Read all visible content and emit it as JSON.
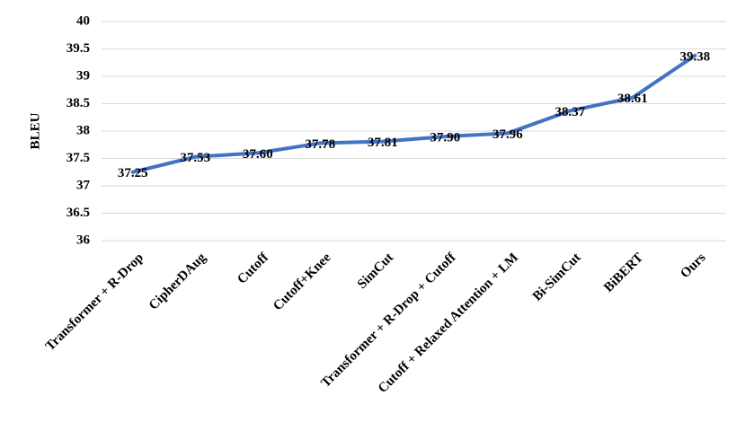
{
  "chart_data": {
    "type": "line",
    "y_label": "BLEU",
    "categories": [
      "Transformer + R-Drop",
      "CipherDAug",
      "Cutoff",
      "Cutoff+Knee",
      "SimCut",
      "Transformer + R-Drop + Cutoff",
      "Cutoff + Relaxed Attention + LM",
      "Bi-SimCut",
      "BiBERT",
      "Ours"
    ],
    "series": [
      {
        "name": "BLEU",
        "color": "#4472c4",
        "values": [
          37.25,
          37.53,
          37.6,
          37.78,
          37.81,
          37.9,
          37.96,
          38.37,
          38.61,
          39.38
        ],
        "value_labels": [
          "37.25",
          "37.53",
          "37.60",
          "37.78",
          "37.81",
          "37.90",
          "37.96",
          "38.37",
          "38.61",
          "39.38"
        ]
      }
    ],
    "ylim": [
      36,
      40
    ],
    "yticks": [
      36,
      36.5,
      37,
      37.5,
      38,
      38.5,
      39,
      39.5,
      40
    ],
    "grid": true
  }
}
